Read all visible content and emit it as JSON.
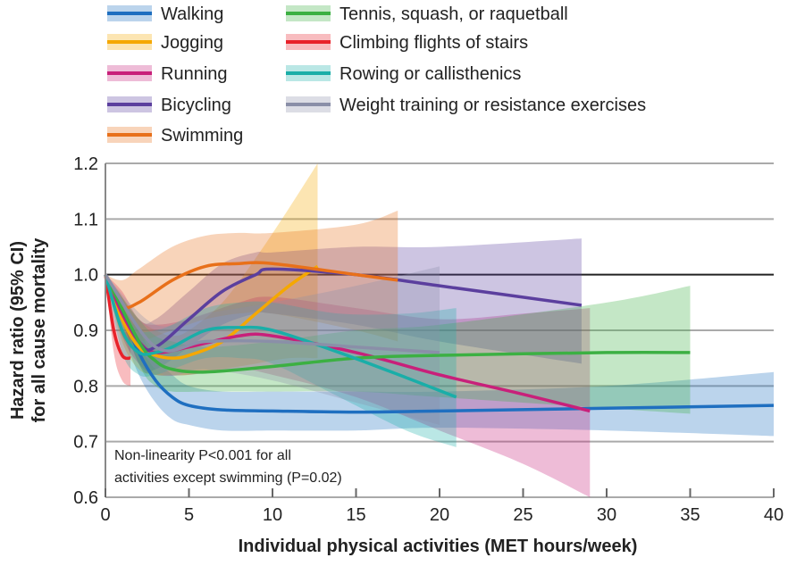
{
  "chart_data": {
    "type": "line",
    "title": "",
    "xlabel": "Individual physical activities (MET hours/week)",
    "ylabel_lines": [
      "Hazard ratio (95% CI)",
      "for all cause mortality"
    ],
    "xlim": [
      0,
      40
    ],
    "ylim": [
      0.6,
      1.2
    ],
    "xticks": [
      0,
      5,
      10,
      15,
      20,
      25,
      30,
      35,
      40
    ],
    "yticks": [
      "0.6",
      "0.7",
      "0.8",
      "0.9",
      "1.0",
      "1.1",
      "1.2"
    ],
    "reference_line": 1.0,
    "grid": true,
    "legend_position": "top",
    "annotation_lines": [
      "Non-linearity P<0.001 for all",
      "activities except swimming (P=0.02)"
    ],
    "series": [
      {
        "name": "Walking",
        "color": "#1f6fc0",
        "x": [
          0,
          1,
          2,
          3,
          4,
          5,
          7,
          10,
          15,
          20,
          30,
          40
        ],
        "y": [
          1.0,
          0.93,
          0.86,
          0.81,
          0.78,
          0.765,
          0.757,
          0.755,
          0.753,
          0.755,
          0.76,
          0.765
        ],
        "lower": [
          1.0,
          0.9,
          0.82,
          0.77,
          0.74,
          0.73,
          0.72,
          0.72,
          0.72,
          0.725,
          0.72,
          0.71
        ],
        "upper": [
          1.0,
          0.96,
          0.9,
          0.85,
          0.82,
          0.8,
          0.79,
          0.79,
          0.79,
          0.79,
          0.8,
          0.825
        ]
      },
      {
        "name": "Jogging",
        "color": "#f5a800",
        "x": [
          0,
          1,
          2,
          3,
          4,
          5,
          7,
          9,
          11,
          12.7
        ],
        "y": [
          1.0,
          0.92,
          0.87,
          0.855,
          0.85,
          0.855,
          0.88,
          0.93,
          0.98,
          1.015
        ],
        "lower": [
          1.0,
          0.88,
          0.83,
          0.82,
          0.82,
          0.82,
          0.83,
          0.84,
          0.85,
          0.85
        ],
        "upper": [
          1.0,
          0.96,
          0.92,
          0.9,
          0.89,
          0.9,
          0.95,
          1.03,
          1.12,
          1.2
        ]
      },
      {
        "name": "Running",
        "color": "#c8207a",
        "x": [
          0,
          1,
          2,
          3,
          5,
          8,
          10,
          15,
          20,
          25,
          29
        ],
        "y": [
          1.0,
          0.93,
          0.88,
          0.86,
          0.87,
          0.89,
          0.89,
          0.86,
          0.82,
          0.785,
          0.755
        ],
        "lower": [
          1.0,
          0.89,
          0.84,
          0.82,
          0.82,
          0.83,
          0.82,
          0.78,
          0.72,
          0.66,
          0.6
        ],
        "upper": [
          1.0,
          0.97,
          0.92,
          0.91,
          0.92,
          0.95,
          0.96,
          0.94,
          0.92,
          0.93,
          0.94
        ]
      },
      {
        "name": "Bicycling",
        "color": "#5b3f9e",
        "x": [
          0,
          2,
          3,
          5,
          7,
          9,
          10,
          15,
          20,
          28.5
        ],
        "y": [
          1.0,
          0.88,
          0.87,
          0.92,
          0.97,
          1.0,
          1.01,
          1.0,
          0.98,
          0.945
        ],
        "lower": [
          1.0,
          0.84,
          0.83,
          0.87,
          0.91,
          0.93,
          0.93,
          0.91,
          0.88,
          0.84
        ],
        "upper": [
          1.0,
          0.92,
          0.92,
          0.97,
          1.02,
          1.04,
          1.04,
          1.05,
          1.05,
          1.065
        ]
      },
      {
        "name": "Swimming",
        "color": "#e8701a",
        "x": [
          0,
          1,
          2,
          4,
          6,
          8,
          10,
          15,
          17.5
        ],
        "y": [
          1.0,
          0.945,
          0.95,
          0.99,
          1.015,
          1.02,
          1.02,
          1.0,
          0.99
        ],
        "lower": [
          1.0,
          0.89,
          0.88,
          0.9,
          0.92,
          0.93,
          0.93,
          0.9,
          0.88
        ],
        "upper": [
          1.0,
          0.99,
          1.01,
          1.05,
          1.07,
          1.075,
          1.075,
          1.09,
          1.115
        ]
      },
      {
        "name": "Tennis, squash, or raquetball",
        "color": "#3cb043",
        "x": [
          0,
          2,
          3,
          4,
          6,
          10,
          15,
          20,
          30,
          35
        ],
        "y": [
          1.0,
          0.88,
          0.845,
          0.83,
          0.825,
          0.835,
          0.85,
          0.855,
          0.86,
          0.86
        ],
        "lower": [
          1.0,
          0.84,
          0.8,
          0.79,
          0.79,
          0.79,
          0.79,
          0.78,
          0.76,
          0.75
        ],
        "upper": [
          1.0,
          0.92,
          0.89,
          0.88,
          0.87,
          0.88,
          0.9,
          0.91,
          0.95,
          0.98
        ]
      },
      {
        "name": "Climbing flights of stairs",
        "color": "#e8222a",
        "x": [
          0,
          0.5,
          1,
          1.5
        ],
        "y": [
          1.0,
          0.9,
          0.855,
          0.85
        ],
        "lower": [
          1.0,
          0.86,
          0.81,
          0.8
        ],
        "upper": [
          1.0,
          0.94,
          0.9,
          0.9
        ]
      },
      {
        "name": "Rowing or callisthenics",
        "color": "#1aaea8",
        "x": [
          0,
          1,
          2,
          3,
          4,
          6,
          8,
          10,
          14,
          18,
          21
        ],
        "y": [
          1.0,
          0.9,
          0.86,
          0.86,
          0.87,
          0.9,
          0.905,
          0.9,
          0.86,
          0.815,
          0.78
        ],
        "lower": [
          1.0,
          0.86,
          0.82,
          0.82,
          0.83,
          0.85,
          0.85,
          0.84,
          0.78,
          0.72,
          0.69
        ],
        "upper": [
          1.0,
          0.94,
          0.9,
          0.9,
          0.91,
          0.94,
          0.95,
          0.95,
          0.93,
          0.93,
          0.94
        ]
      },
      {
        "name": "Weight training or resistance exercises",
        "color": "#8a8fa8",
        "x": [
          0,
          3,
          6,
          10,
          15,
          20
        ],
        "y": [
          1.0,
          0.87,
          0.88,
          0.88,
          0.87,
          0.86
        ],
        "lower": [
          1.0,
          0.83,
          0.83,
          0.81,
          0.77,
          0.73
        ],
        "upper": [
          1.0,
          0.91,
          0.93,
          0.95,
          0.98,
          1.015
        ]
      }
    ]
  }
}
